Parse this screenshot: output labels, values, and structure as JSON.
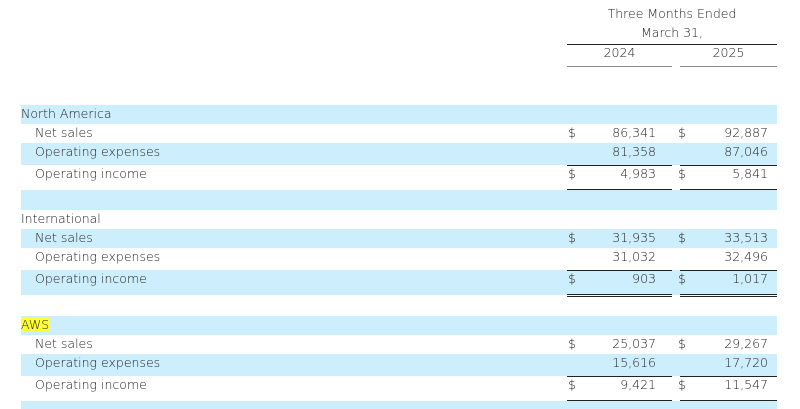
{
  "header": {
    "period": "Three Months Ended",
    "date": "March 31,",
    "years": [
      "2024",
      "2025"
    ]
  },
  "segments": [
    {
      "name": "North America",
      "highlight": false,
      "rows": [
        {
          "label": "Net sales",
          "dollar": [
            "$",
            "$"
          ],
          "values": [
            "86,341",
            "92,887"
          ]
        },
        {
          "label": "Operating expenses",
          "dollar": [
            "",
            ""
          ],
          "values": [
            "81,358",
            "87,046"
          ]
        },
        {
          "label": "Operating income",
          "dollar": [
            "$",
            "$"
          ],
          "values": [
            "4,983",
            "5,841"
          ]
        }
      ]
    },
    {
      "name": "International",
      "highlight": false,
      "rows": [
        {
          "label": "Net sales",
          "dollar": [
            "$",
            "$"
          ],
          "values": [
            "31,935",
            "33,513"
          ]
        },
        {
          "label": "Operating expenses",
          "dollar": [
            "",
            ""
          ],
          "values": [
            "31,032",
            "32,496"
          ]
        },
        {
          "label": "Operating income",
          "dollar": [
            "$",
            "$"
          ],
          "values": [
            "903",
            "1,017"
          ]
        }
      ]
    },
    {
      "name": "AWS",
      "highlight": true,
      "rows": [
        {
          "label": "Net sales",
          "dollar": [
            "$",
            "$"
          ],
          "values": [
            "25,037",
            "29,267"
          ]
        },
        {
          "label": "Operating expenses",
          "dollar": [
            "",
            ""
          ],
          "values": [
            "15,616",
            "17,720"
          ]
        },
        {
          "label": "Operating income",
          "dollar": [
            "$",
            "$"
          ],
          "values": [
            "9,421",
            "11,547"
          ]
        }
      ]
    }
  ],
  "colors": {
    "band": "#cdeefc",
    "highlight": "#ffff33"
  }
}
